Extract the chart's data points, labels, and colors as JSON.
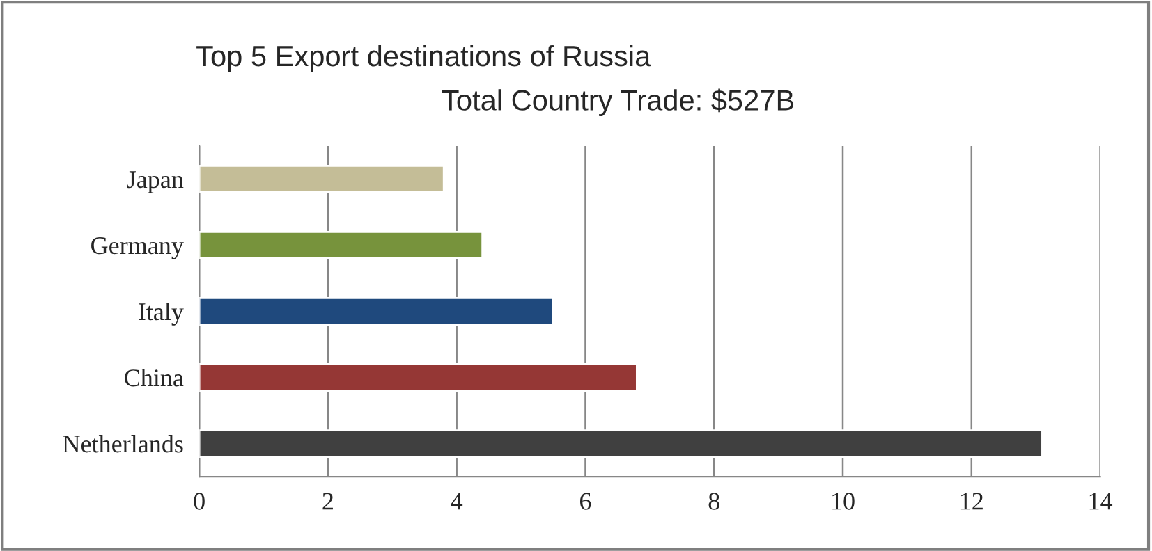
{
  "chart_data": {
    "type": "bar",
    "orientation": "horizontal",
    "title": "Top 5 Export destinations of Russia",
    "subtitle": "Total Country Trade: $527B",
    "categories": [
      "Japan",
      "Germany",
      "Italy",
      "China",
      "Netherlands"
    ],
    "values": [
      3.8,
      4.4,
      5.5,
      6.8,
      13.1
    ],
    "colors": [
      "#c4bd97",
      "#77933c",
      "#1f497d",
      "#953735",
      "#404040"
    ],
    "xlim": [
      0,
      14
    ],
    "xticks": [
      0,
      2,
      4,
      6,
      8,
      10,
      12,
      14
    ],
    "grid": "x",
    "legend": false
  }
}
